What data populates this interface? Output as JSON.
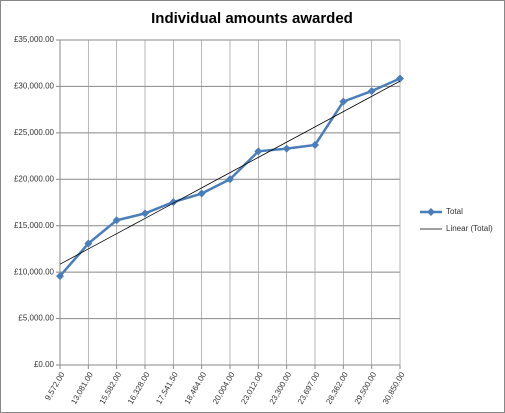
{
  "chart_data": {
    "type": "line",
    "title": "Individual amounts awarded",
    "categories": [
      "9,572.00",
      "13,081.00",
      "15,582.00",
      "16,328.00",
      "17,541.50",
      "18,464.00",
      "20,004.00",
      "23,012.00",
      "23,300.00",
      "23,697.00",
      "28,362.00",
      "29,500.00",
      "30,850.00"
    ],
    "series": [
      {
        "name": "Total",
        "color": "#4a7ebb",
        "marker": "diamond",
        "values": [
          9572,
          13081,
          15582,
          16328,
          17541.5,
          18464,
          20004,
          23012,
          23300,
          23697,
          28362,
          29500,
          30850
        ]
      },
      {
        "name": "Linear (Total)",
        "color": "#000000",
        "values": [
          10856,
          12499,
          14142,
          15785,
          17428,
          19072,
          20715,
          22358,
          24001,
          25644,
          27288,
          28931,
          30574
        ]
      }
    ],
    "ylim": [
      0,
      35000
    ],
    "yticks": [
      {
        "value": 0,
        "label": "£0.00"
      },
      {
        "value": 5000,
        "label": "£5,000.00"
      },
      {
        "value": 10000,
        "label": "£10,000.00"
      },
      {
        "value": 15000,
        "label": "£15,000.00"
      },
      {
        "value": 20000,
        "label": "£20,000.00"
      },
      {
        "value": 25000,
        "label": "£25,000.00"
      },
      {
        "value": 30000,
        "label": "£30,000.00"
      },
      {
        "value": 35000,
        "label": "£35,000.00"
      }
    ],
    "grid": true,
    "legend": "right"
  }
}
